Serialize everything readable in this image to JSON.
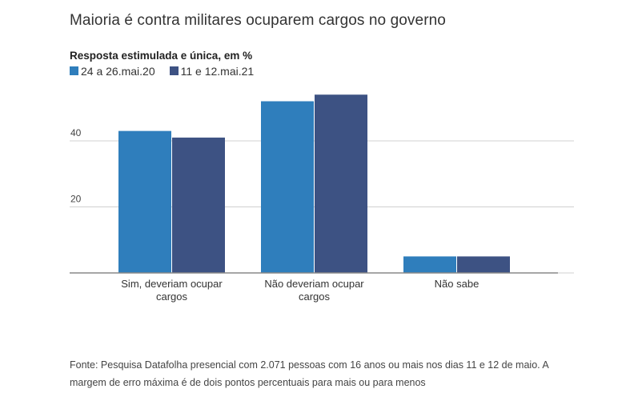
{
  "chart_data": {
    "type": "bar",
    "title": "Maioria é contra militares ocuparem cargos no governo",
    "subtitle": "Resposta estimulada e única, em %",
    "categories": [
      [
        "Sim, deveriam ocupar",
        "cargos"
      ],
      [
        "Não deveriam ocupar",
        "cargos"
      ],
      [
        "Não sabe"
      ]
    ],
    "category_labels": [
      "Sim, deveriam ocupar cargos",
      "Não deveriam ocupar cargos",
      "Não sabe"
    ],
    "series": [
      {
        "name": "24 a 26.mai.20",
        "color": "#2f7ebc",
        "values": [
          43,
          52,
          5
        ]
      },
      {
        "name": "11 e 12.mai.21",
        "color": "#3d5283",
        "values": [
          41,
          54,
          5
        ]
      }
    ],
    "yticks": [
      20,
      40
    ],
    "ylim": [
      0,
      60
    ],
    "grid": true,
    "legend_position": "top-left",
    "xlabel": "",
    "ylabel": ""
  },
  "source": "Fonte: Pesquisa Datafolha presencial com 2.071 pessoas com 16 anos ou mais nos dias 11 e 12 de maio. A margem de erro máxima é de dois pontos percentuais para mais ou para menos"
}
